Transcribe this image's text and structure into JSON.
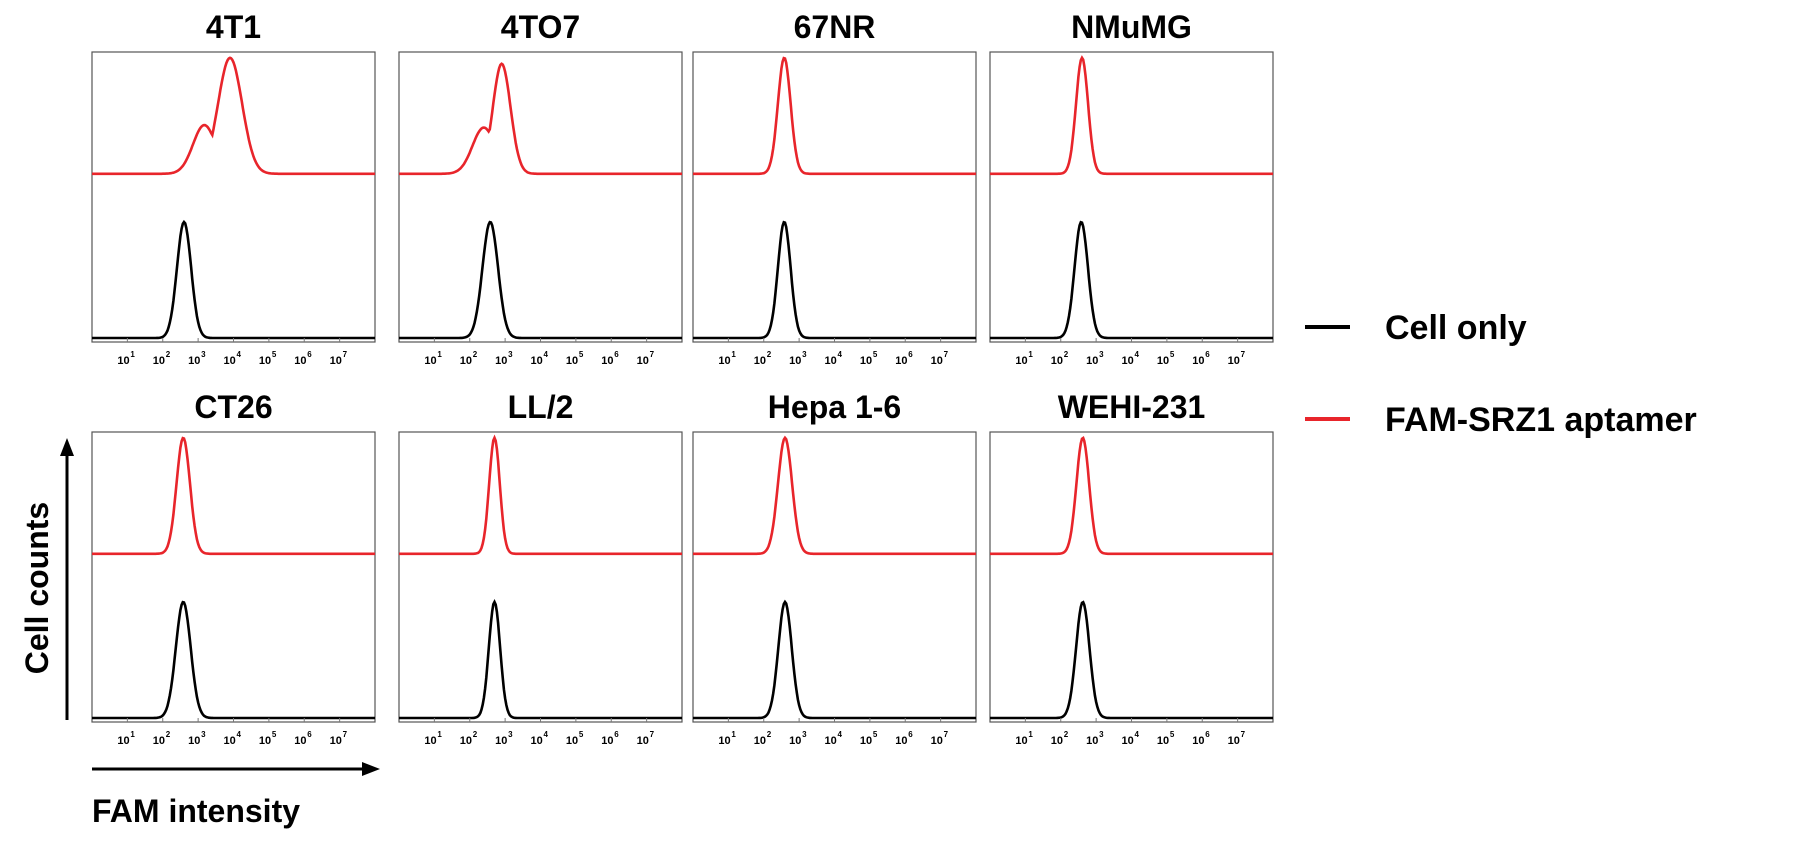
{
  "chart_data": {
    "type": "line",
    "title": "",
    "xlabel": "FAM intensity",
    "ylabel": "Cell counts",
    "x_scale": "log",
    "xlim": [
      1,
      100000000
    ],
    "x_tick_labels": [
      "10",
      "10",
      "10",
      "10",
      "10",
      "10",
      "10"
    ],
    "x_tick_exponents": [
      "1",
      "2",
      "3",
      "4",
      "5",
      "6",
      "7"
    ],
    "legend_position": "right",
    "series_styles": [
      {
        "name": "Cell only",
        "color": "#000000"
      },
      {
        "name": "FAM-SRZ1 aptamer",
        "color": "#e8252b"
      }
    ],
    "panels": [
      {
        "title": "4T1",
        "black_peak": 400,
        "black_width": 0.2,
        "red_peak": 8000,
        "red_width": 0.34,
        "red_shoulder": 1500,
        "red_height": 0.78
      },
      {
        "title": "4TO7",
        "black_peak": 380,
        "black_width": 0.22,
        "red_peak": 800,
        "red_width": 0.25,
        "red_shoulder": 250,
        "red_height": 0.74
      },
      {
        "title": "67NR",
        "black_peak": 380,
        "black_width": 0.18,
        "red_peak": 380,
        "red_width": 0.18,
        "red_shoulder": 0,
        "red_height": 0.78
      },
      {
        "title": "NMuMG",
        "black_peak": 380,
        "black_width": 0.19,
        "red_peak": 400,
        "red_width": 0.17,
        "red_shoulder": 0,
        "red_height": 0.78
      },
      {
        "title": "CT26",
        "black_peak": 380,
        "black_width": 0.21,
        "red_peak": 380,
        "red_width": 0.19,
        "red_shoulder": 0,
        "red_height": 0.78
      },
      {
        "title": "LL/2",
        "black_peak": 500,
        "black_width": 0.16,
        "red_peak": 500,
        "red_width": 0.15,
        "red_shoulder": 0,
        "red_height": 0.78
      },
      {
        "title": "Hepa 1-6",
        "black_peak": 400,
        "black_width": 0.19,
        "red_peak": 400,
        "red_width": 0.2,
        "red_shoulder": 0,
        "red_height": 0.78
      },
      {
        "title": "WEHI-231",
        "black_peak": 420,
        "black_width": 0.19,
        "red_peak": 420,
        "red_width": 0.18,
        "red_shoulder": 0,
        "red_height": 0.78
      }
    ]
  }
}
